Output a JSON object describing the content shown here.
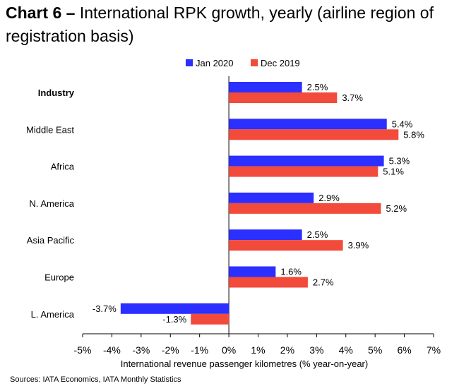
{
  "header": {
    "title_lead": "Chart 6 –",
    "title_rest": " International RPK growth, yearly (airline region of registration basis)"
  },
  "chart_data": {
    "type": "bar",
    "orientation": "horizontal",
    "categories": [
      "Industry",
      "Middle East",
      "Africa",
      "N. America",
      "Asia Pacific",
      "Europe",
      "L. America"
    ],
    "series": [
      {
        "name": "Jan 2020",
        "color": "#2b2fff",
        "values": [
          2.5,
          5.4,
          5.3,
          2.9,
          2.5,
          1.6,
          -3.7
        ],
        "labels": [
          "2.5%",
          "5.4%",
          "5.3%",
          "2.9%",
          "2.5%",
          "1.6%",
          "-3.7%"
        ]
      },
      {
        "name": "Dec 2019",
        "color": "#f24a3b",
        "values": [
          3.7,
          5.8,
          5.1,
          5.2,
          3.9,
          2.7,
          -1.3
        ],
        "labels": [
          "3.7%",
          "5.8%",
          "5.1%",
          "5.2%",
          "3.9%",
          "2.7%",
          "-1.3%"
        ]
      }
    ],
    "xlabel": "International revenue passenger kilometres (% year-on-year)",
    "xlim": [
      -5,
      7
    ],
    "xticks": [
      -5,
      -4,
      -3,
      -2,
      -1,
      0,
      1,
      2,
      3,
      4,
      5,
      6,
      7
    ],
    "xtick_labels": [
      "-5%",
      "-4%",
      "-3%",
      "-2%",
      "-1%",
      "0%",
      "1%",
      "2%",
      "3%",
      "4%",
      "5%",
      "6%",
      "7%"
    ],
    "legend_position": "top-center",
    "grid": false,
    "bold_category": "Industry"
  },
  "footer": {
    "source": "Sources: IATA Economics, IATA Monthly Statistics"
  }
}
